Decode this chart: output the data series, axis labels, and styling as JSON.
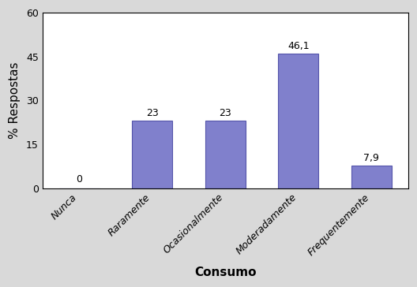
{
  "categories": [
    "Nunca",
    "Raramente",
    "Ocasionalmente",
    "Moderadamente",
    "Frequentemente"
  ],
  "values": [
    0,
    23,
    23,
    46.1,
    7.9
  ],
  "labels": [
    "0",
    "23",
    "23",
    "46,1",
    "7,9"
  ],
  "bar_color": "#8080cc",
  "bar_edgecolor": "#5555aa",
  "ylabel": "% Respostas",
  "xlabel": "Consumo",
  "ylim": [
    0,
    60
  ],
  "yticks": [
    0,
    15,
    30,
    45,
    60
  ],
  "background_color": "#ffffff",
  "fig_facecolor": "#d9d9d9",
  "label_fontsize": 9,
  "axis_label_fontsize": 11,
  "tick_fontsize": 9
}
